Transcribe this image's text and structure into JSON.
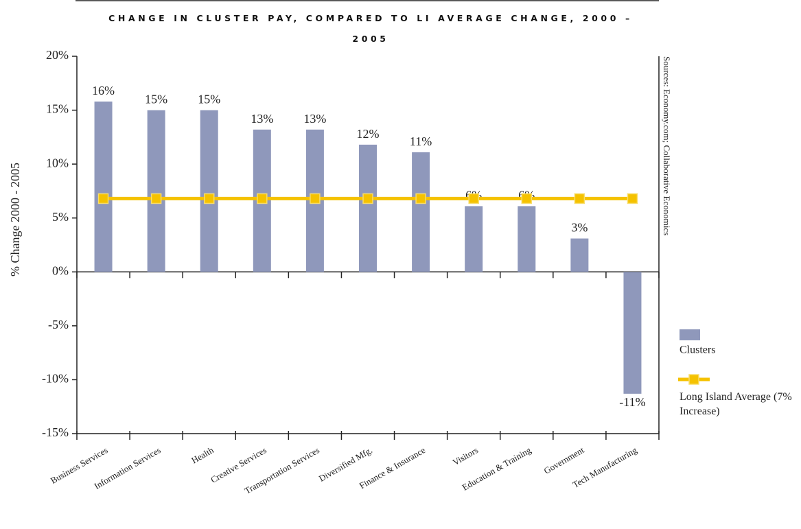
{
  "chart_data": {
    "type": "bar",
    "title": "CHANGE IN CLUSTER PAY, COMPARED TO LI AVERAGE CHANGE, 2000 – 2005",
    "ylabel": "% Change 2000 - 2005",
    "source": "Sources: Economy.com; Collaborative Economics",
    "categories": [
      "Business Services",
      "Information Services",
      "Health",
      "Creative Services",
      "Transportation Services",
      "Diversified Mfg.",
      "Finance & Insurance",
      "Visitors",
      "Education & Training",
      "Government",
      "Tech Manufacturing"
    ],
    "series": [
      {
        "name": "Clusters",
        "type": "bar",
        "color": "#8f98bb",
        "values": [
          15.8,
          15.0,
          15.0,
          13.2,
          13.2,
          11.8,
          11.1,
          6.1,
          6.1,
          3.1,
          -11.3
        ],
        "value_labels": [
          "16%",
          "15%",
          "15%",
          "13%",
          "13%",
          "12%",
          "11%",
          "6%",
          "6%",
          "3%",
          "-11%"
        ]
      },
      {
        "name": "Long Island Average (7% Increase)",
        "type": "line",
        "color": "#f5c200",
        "values": [
          6.8,
          6.8,
          6.8,
          6.8,
          6.8,
          6.8,
          6.8,
          6.8,
          6.8,
          6.8,
          6.8
        ]
      }
    ],
    "ylim": [
      -15,
      20
    ],
    "yticks": [
      {
        "value": -15,
        "label": "-15%"
      },
      {
        "value": -10,
        "label": "-10%"
      },
      {
        "value": -5,
        "label": "-5%"
      },
      {
        "value": 0,
        "label": "0%"
      },
      {
        "value": 5,
        "label": "5%"
      },
      {
        "value": 10,
        "label": "10%"
      },
      {
        "value": 15,
        "label": "15%"
      },
      {
        "value": 20,
        "label": "20%"
      }
    ],
    "legend": "right"
  }
}
